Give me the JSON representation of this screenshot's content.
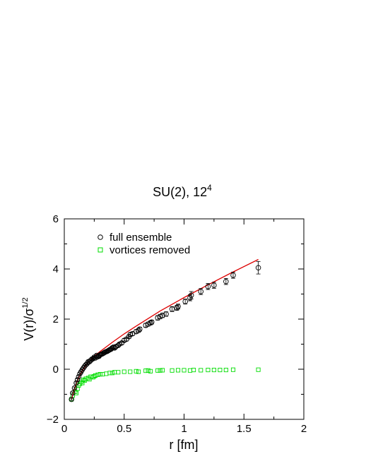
{
  "chart_data": {
    "type": "scatter",
    "title": {
      "main": "SU(2), 12",
      "superscript": "4"
    },
    "xlabel": "r [fm]",
    "ylabel": {
      "main": "V(r)/σ",
      "superscript": "1/2"
    },
    "xlim": [
      0,
      2
    ],
    "ylim": [
      -2,
      6
    ],
    "xticks": [
      "0",
      "0.5",
      "1",
      "1.5",
      "2"
    ],
    "yticks": [
      "−2",
      "0",
      "2",
      "4",
      "6"
    ],
    "grid": false,
    "legend_position": "top-left",
    "colors": {
      "full": "#000000",
      "vortices": "#00dd00",
      "fit": "#dd0000"
    },
    "series": [
      {
        "name": "full ensemble",
        "marker": "circle",
        "x": [
          0.06,
          0.07,
          0.085,
          0.1,
          0.11,
          0.12,
          0.13,
          0.14,
          0.15,
          0.16,
          0.17,
          0.18,
          0.19,
          0.2,
          0.21,
          0.22,
          0.23,
          0.24,
          0.25,
          0.26,
          0.27,
          0.28,
          0.29,
          0.3,
          0.31,
          0.32,
          0.33,
          0.34,
          0.35,
          0.36,
          0.37,
          0.38,
          0.39,
          0.4,
          0.41,
          0.42,
          0.43,
          0.45,
          0.46,
          0.48,
          0.5,
          0.52,
          0.54,
          0.55,
          0.57,
          0.6,
          0.62,
          0.63,
          0.68,
          0.7,
          0.72,
          0.73,
          0.78,
          0.8,
          0.82,
          0.85,
          0.9,
          0.94,
          0.95,
          1.01,
          1.05,
          1.06,
          1.14,
          1.2,
          1.25,
          1.35,
          1.41,
          1.62
        ],
        "y": [
          -1.2,
          -0.95,
          -0.75,
          -0.55,
          -0.42,
          -0.3,
          -0.18,
          -0.1,
          -0.02,
          0.05,
          0.12,
          0.18,
          0.22,
          0.3,
          0.3,
          0.35,
          0.4,
          0.42,
          0.48,
          0.45,
          0.55,
          0.5,
          0.52,
          0.58,
          0.6,
          0.62,
          0.65,
          0.68,
          0.7,
          0.72,
          0.75,
          0.78,
          0.8,
          0.85,
          0.88,
          0.85,
          0.9,
          0.95,
          1.0,
          1.05,
          1.15,
          1.2,
          1.3,
          1.38,
          1.42,
          1.5,
          1.55,
          1.6,
          1.75,
          1.8,
          1.85,
          1.88,
          2.05,
          2.1,
          2.15,
          2.2,
          2.4,
          2.45,
          2.5,
          2.7,
          2.85,
          2.95,
          3.1,
          3.3,
          3.35,
          3.5,
          3.75,
          4.05
        ],
        "err": [
          0.04,
          0.04,
          0.04,
          0.04,
          0.04,
          0.04,
          0.04,
          0.04,
          0.04,
          0.04,
          0.04,
          0.04,
          0.04,
          0.04,
          0.04,
          0.04,
          0.04,
          0.04,
          0.05,
          0.05,
          0.05,
          0.05,
          0.05,
          0.05,
          0.05,
          0.05,
          0.05,
          0.05,
          0.05,
          0.05,
          0.05,
          0.05,
          0.05,
          0.06,
          0.06,
          0.06,
          0.06,
          0.06,
          0.06,
          0.06,
          0.07,
          0.07,
          0.07,
          0.07,
          0.07,
          0.08,
          0.08,
          0.08,
          0.08,
          0.08,
          0.08,
          0.08,
          0.09,
          0.09,
          0.09,
          0.09,
          0.1,
          0.1,
          0.1,
          0.1,
          0.12,
          0.15,
          0.12,
          0.12,
          0.12,
          0.12,
          0.12,
          0.25
        ]
      },
      {
        "name": "vortices removed",
        "marker": "square",
        "x": [
          0.06,
          0.07,
          0.09,
          0.1,
          0.11,
          0.12,
          0.13,
          0.14,
          0.15,
          0.16,
          0.17,
          0.18,
          0.2,
          0.21,
          0.22,
          0.24,
          0.25,
          0.26,
          0.28,
          0.3,
          0.32,
          0.35,
          0.38,
          0.4,
          0.42,
          0.45,
          0.5,
          0.55,
          0.6,
          0.62,
          0.68,
          0.7,
          0.72,
          0.78,
          0.8,
          0.82,
          0.9,
          0.95,
          1.0,
          1.05,
          1.08,
          1.14,
          1.2,
          1.25,
          1.3,
          1.35,
          1.41,
          1.62
        ],
        "y": [
          -1.2,
          -1.05,
          -0.9,
          -0.95,
          -0.78,
          -0.65,
          -0.58,
          -0.5,
          -0.55,
          -0.42,
          -0.45,
          -0.38,
          -0.35,
          -0.4,
          -0.3,
          -0.32,
          -0.28,
          -0.25,
          -0.22,
          -0.2,
          -0.2,
          -0.18,
          -0.15,
          -0.15,
          -0.12,
          -0.12,
          -0.1,
          -0.1,
          -0.08,
          -0.1,
          -0.06,
          -0.05,
          -0.08,
          -0.05,
          -0.05,
          -0.04,
          -0.05,
          -0.04,
          -0.04,
          -0.05,
          -0.03,
          -0.04,
          -0.03,
          -0.03,
          -0.03,
          -0.03,
          -0.02,
          -0.02
        ]
      },
      {
        "name": "",
        "kind": "fit-line",
        "x": [
          0.06,
          0.08,
          0.1,
          0.12,
          0.15,
          0.2,
          0.25,
          0.3,
          0.4,
          0.5,
          0.6,
          0.8,
          1.0,
          1.2,
          1.4,
          1.62
        ],
        "y": [
          -1.2,
          -0.87,
          -0.57,
          -0.34,
          -0.06,
          0.27,
          0.52,
          0.71,
          1.07,
          1.41,
          1.72,
          2.32,
          2.86,
          3.37,
          3.86,
          4.38
        ]
      }
    ]
  }
}
